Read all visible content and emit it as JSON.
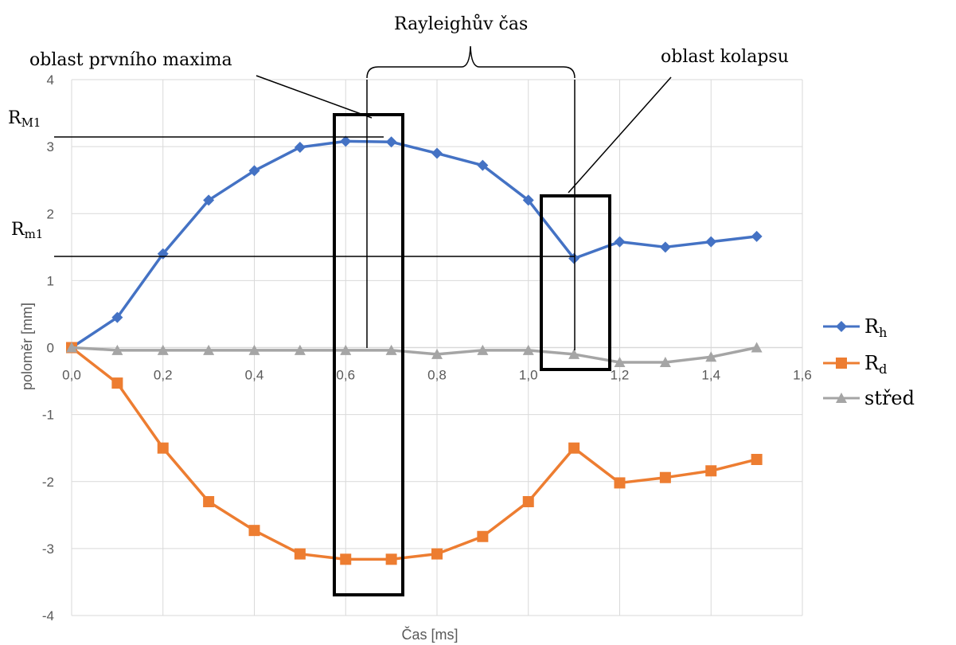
{
  "chart_data": {
    "type": "line",
    "xlabel": "Čas [ms]",
    "ylabel": "poloměr [mm]",
    "xlim": [
      0,
      1.6
    ],
    "ylim": [
      -4,
      4
    ],
    "x_ticks": [
      "0,0",
      "0,2",
      "0,4",
      "0,6",
      "0,8",
      "1,0",
      "1,2",
      "1,4",
      "1,6"
    ],
    "y_ticks": [
      "4",
      "3",
      "2",
      "1",
      "0",
      "-1",
      "-2",
      "-3",
      "-4"
    ],
    "grid": true,
    "legend_position": "right",
    "x": [
      0.0,
      0.1,
      0.2,
      0.3,
      0.4,
      0.5,
      0.6,
      0.7,
      0.8,
      0.9,
      1.0,
      1.1,
      1.2,
      1.3,
      1.4,
      1.5
    ],
    "series": [
      {
        "name": "Rh",
        "name_base": "R",
        "name_sub": "h",
        "color": "#4472C4",
        "marker": "diamond",
        "values": [
          0,
          0.45,
          1.4,
          2.2,
          2.64,
          2.99,
          3.08,
          3.07,
          2.9,
          2.72,
          2.2,
          1.33,
          1.58,
          1.5,
          1.58,
          1.66
        ]
      },
      {
        "name": "Rd",
        "name_base": "R",
        "name_sub": "d",
        "color": "#ED7D31",
        "marker": "square",
        "values": [
          0,
          -0.53,
          -1.5,
          -2.3,
          -2.73,
          -3.08,
          -3.16,
          -3.16,
          -3.08,
          -2.82,
          -2.3,
          -1.5,
          -2.02,
          -1.94,
          -1.84,
          -1.67
        ]
      },
      {
        "name": "střed",
        "name_base": "střed",
        "name_sub": "",
        "color": "#A5A5A5",
        "marker": "triangle",
        "values": [
          0,
          -0.04,
          -0.04,
          -0.04,
          -0.04,
          -0.04,
          -0.04,
          -0.04,
          -0.1,
          -0.04,
          -0.04,
          -0.1,
          -0.22,
          -0.22,
          -0.14,
          0
        ]
      }
    ],
    "annotations": {
      "first_max": "oblast prvního maxima",
      "rayleigh": "Rayleighův čas",
      "collapse": "oblast kolapsu",
      "rm_big_base": "R",
      "rm_big_sub": "M1",
      "rm_small_base": "R",
      "rm_small_sub": "m1"
    }
  }
}
